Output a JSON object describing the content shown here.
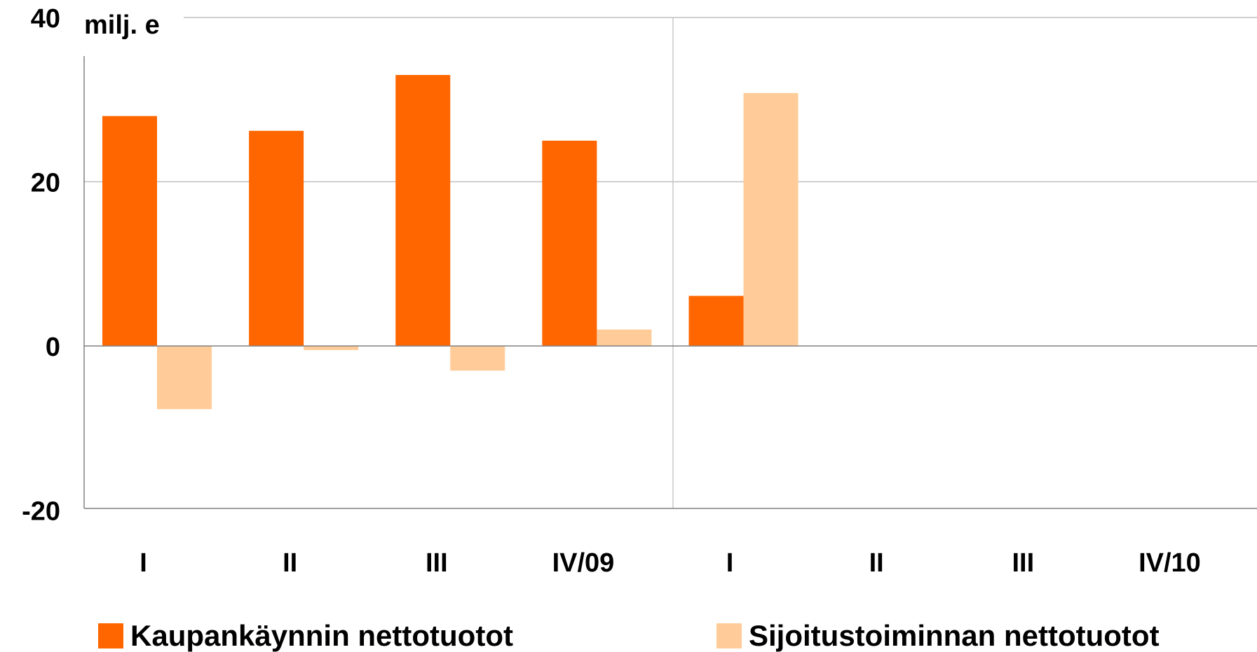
{
  "chart_data": {
    "type": "bar",
    "unit_label": "milj. e",
    "categories": [
      "I",
      "II",
      "III",
      "IV/09",
      "I",
      "II",
      "III",
      "IV/10"
    ],
    "series": [
      {
        "name": "Kaupankäynnin nettotuotot",
        "color": "#FF6600",
        "values": [
          28,
          26.2,
          33,
          25,
          null,
          null,
          null,
          null
        ],
        "values_full": [
          28,
          26.2,
          33,
          25,
          6.1,
          null,
          null,
          null
        ]
      },
      {
        "name": "Sijoitustoiminnan nettotuotot",
        "color": "#FFCC99",
        "values_full": [
          -7.7,
          -0.5,
          -3,
          2,
          30.8,
          null,
          null,
          null
        ]
      }
    ],
    "ylim": [
      -20,
      40
    ],
    "yticks": [
      -20,
      0,
      20,
      40
    ],
    "ytick_labels": [
      "-20",
      "0",
      "20",
      "40"
    ],
    "grid": true,
    "legend_position": "bottom"
  }
}
